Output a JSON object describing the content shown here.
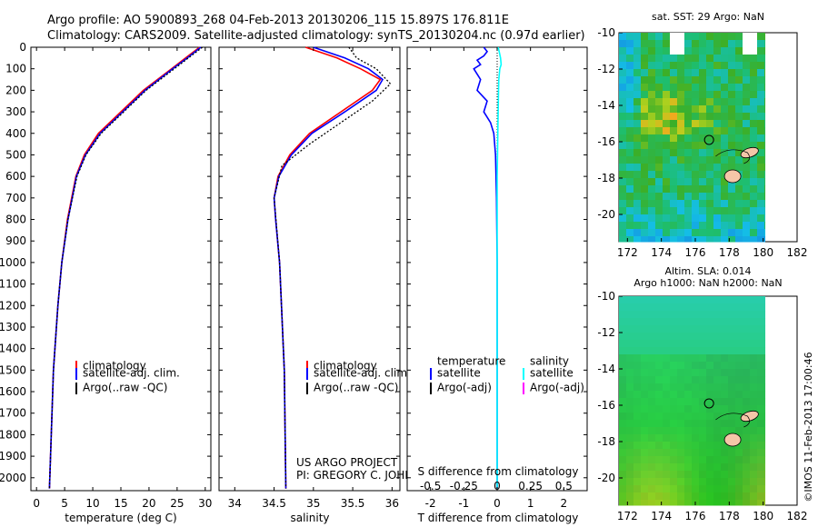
{
  "header": {
    "line1": "Argo profile: AO 5900893_268 04-Feb-2013 20130206_115 15.897S 176.811E",
    "line2": "Climatology: CARS2009. Satellite-adjusted climatology: synTS_20130204.nc (0.97d earlier)"
  },
  "colors": {
    "climatology": "#ff0000",
    "satellite": "#0000ff",
    "argo": "#000000",
    "salinity_satellite": "#00ffff",
    "salinity_argo": "#ff00ff",
    "land": "#f5c6a8"
  },
  "chart_data": [
    {
      "type": "line",
      "name": "temperature-profile",
      "xlabel": "temperature (deg C)",
      "xlim": [
        -1,
        31
      ],
      "xticks": [
        0,
        5,
        10,
        15,
        20,
        25,
        30
      ],
      "ylim": [
        2060,
        0
      ],
      "yticks": [
        0,
        100,
        200,
        300,
        400,
        500,
        600,
        700,
        800,
        900,
        1000,
        1100,
        1200,
        1300,
        1400,
        1500,
        1600,
        1700,
        1800,
        1900,
        2000
      ],
      "legend": [
        "climatology",
        "satellite-adj. clim.",
        "Argo(..raw -QC)"
      ],
      "series": [
        {
          "name": "climatology",
          "depth": [
            0,
            50,
            100,
            200,
            300,
            400,
            500,
            600,
            800,
            1000,
            1200,
            1500,
            2050
          ],
          "values": [
            29.0,
            26.5,
            24.0,
            19.0,
            15.0,
            11.0,
            8.5,
            7.0,
            5.5,
            4.5,
            3.8,
            3.0,
            2.3
          ]
        },
        {
          "name": "satellite-adj. clim.",
          "depth": [
            0,
            50,
            100,
            200,
            300,
            400,
            500,
            600,
            800,
            1000,
            1200,
            1500,
            2050
          ],
          "values": [
            29.2,
            26.8,
            24.2,
            19.3,
            15.3,
            11.3,
            8.7,
            7.1,
            5.6,
            4.5,
            3.8,
            3.0,
            2.3
          ]
        },
        {
          "name": "Argo(..raw -QC)",
          "depth": [
            0,
            50,
            100,
            200,
            300,
            400,
            500,
            600,
            800,
            1000,
            1200,
            1500,
            2050
          ],
          "values": [
            29.5,
            27.0,
            24.5,
            19.5,
            15.5,
            11.5,
            8.8,
            7.2,
            5.6,
            4.5,
            3.8,
            3.0,
            2.3
          ]
        }
      ]
    },
    {
      "type": "line",
      "name": "salinity-profile",
      "xlabel": "salinity",
      "xlim": [
        33.8,
        36.1
      ],
      "xticks": [
        34,
        34.5,
        35,
        35.5,
        36
      ],
      "ylim": [
        2060,
        0
      ],
      "legend": [
        "climatology",
        "satellite-adj. clim.",
        "Argo(..raw -QC)"
      ],
      "series": [
        {
          "name": "climatology",
          "depth": [
            0,
            50,
            100,
            150,
            200,
            300,
            400,
            500,
            600,
            700,
            800,
            1000,
            1500,
            2050
          ],
          "values": [
            34.9,
            35.3,
            35.6,
            35.85,
            35.75,
            35.35,
            34.95,
            34.7,
            34.55,
            34.5,
            34.52,
            34.57,
            34.63,
            34.65
          ]
        },
        {
          "name": "satellite-adj. clim.",
          "depth": [
            0,
            50,
            100,
            150,
            200,
            300,
            400,
            500,
            600,
            700,
            800,
            1000,
            1500,
            2050
          ],
          "values": [
            35.0,
            35.4,
            35.7,
            35.88,
            35.8,
            35.4,
            34.98,
            34.72,
            34.56,
            34.5,
            34.52,
            34.57,
            34.63,
            34.65
          ]
        },
        {
          "name": "Argo(..raw -QC)",
          "depth": [
            0,
            50,
            100,
            170,
            250,
            350,
            450,
            550,
            700,
            1000,
            1500,
            2050
          ],
          "values": [
            35.45,
            35.55,
            35.8,
            35.98,
            35.75,
            35.35,
            34.95,
            34.6,
            34.5,
            34.57,
            34.63,
            34.65
          ]
        }
      ]
    },
    {
      "type": "line",
      "name": "difference-profile",
      "xlabel": "T difference from climatology",
      "xlabel_top": "S difference from climatology",
      "xlim": [
        -2.7,
        2.7
      ],
      "xticks": [
        -2,
        -1,
        0,
        1,
        2
      ],
      "xticks_top": [
        -0.5,
        -0.25,
        0,
        0.25,
        0.5
      ],
      "xticks_top_labels": [
        "-0.5",
        "-0.25",
        "0",
        "0.25",
        "0.5"
      ],
      "ylim": [
        2060,
        0
      ],
      "legend_titles": [
        "temperature",
        "salinity"
      ],
      "legend": [
        "satellite",
        "Argo(-adj)",
        "satellite",
        "Argo(-adj)"
      ],
      "series": [
        {
          "name": "T satellite",
          "depth": [
            0,
            20,
            40,
            60,
            80,
            100,
            150,
            200,
            250,
            300,
            350,
            400,
            500,
            700,
            1000,
            1500,
            2050
          ],
          "values": [
            -0.4,
            -0.3,
            -0.4,
            -0.6,
            -0.5,
            -0.7,
            -0.5,
            -0.6,
            -0.3,
            -0.4,
            -0.2,
            -0.1,
            -0.05,
            -0.02,
            0.0,
            0.0,
            0.0
          ]
        },
        {
          "name": "S satellite",
          "depth": [
            0,
            20,
            50,
            80,
            100,
            150,
            200,
            300,
            400,
            500,
            600,
            800,
            1000,
            1500,
            2050
          ],
          "values": [
            0.03,
            0.06,
            0.1,
            0.12,
            0.08,
            0.05,
            0.04,
            0.03,
            0.02,
            0.01,
            0.0,
            0.0,
            0.0,
            0.0,
            0.0
          ]
        }
      ]
    },
    {
      "type": "heatmap",
      "name": "sst-map",
      "title": "sat. SST: 29 Argo: NaN",
      "xlim": [
        171.5,
        182
      ],
      "xticks": [
        172,
        174,
        176,
        178,
        180,
        182
      ],
      "ylim": [
        -21.5,
        -10
      ],
      "yticks": [
        -10,
        -12,
        -14,
        -16,
        -18,
        -20
      ],
      "argo_position": {
        "lon": 176.811,
        "lat": -15.897
      }
    },
    {
      "type": "heatmap",
      "name": "sla-map",
      "title": "Altim. SLA: 0.014",
      "subtitle": "Argo h1000: NaN h2000: NaN",
      "xlim": [
        171.5,
        182
      ],
      "xticks": [
        172,
        174,
        176,
        178,
        180,
        182
      ],
      "ylim": [
        -21.5,
        -10
      ],
      "yticks": [
        -10,
        -12,
        -14,
        -16,
        -18,
        -20
      ],
      "argo_position": {
        "lon": 176.811,
        "lat": -15.897
      }
    }
  ],
  "legend_labels": {
    "climatology": "climatology",
    "satellite_adj": "satellite-adj. clim.",
    "argo_raw": "Argo(..raw -QC)"
  },
  "annotations": {
    "project": "US ARGO PROJECT",
    "pi": "PI: GREGORY C. JOHNSON",
    "credit": "©IMOS 11-Feb-2013 17:00:46"
  }
}
